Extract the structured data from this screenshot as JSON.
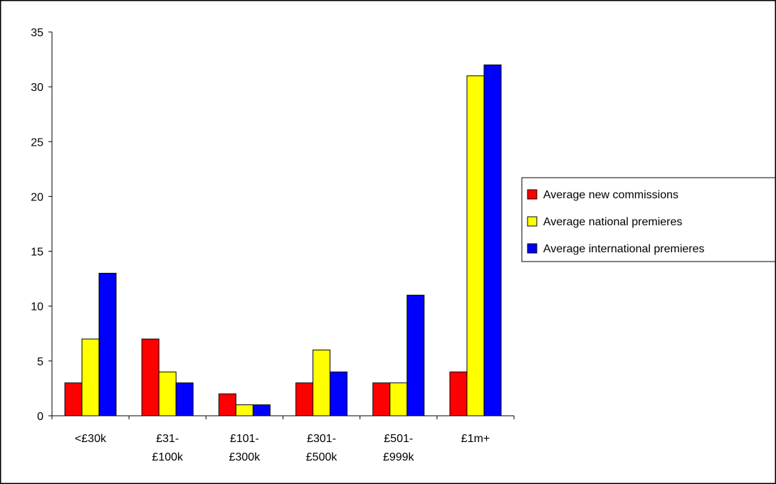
{
  "chart_data": {
    "type": "bar",
    "title": "",
    "xlabel": "",
    "ylabel": "",
    "ylim": [
      0,
      35
    ],
    "yticks": [
      0,
      5,
      10,
      15,
      20,
      25,
      30,
      35
    ],
    "grid": false,
    "legend_position": "right",
    "categories": [
      [
        "<£30k"
      ],
      [
        "£31-",
        "£100k"
      ],
      [
        "£101-",
        "£300k"
      ],
      [
        "£301-",
        "£500k"
      ],
      [
        "£501-",
        "£999k"
      ],
      [
        "£1m+"
      ]
    ],
    "series": [
      {
        "name": "Average new commissions",
        "color": "#ff0000",
        "values": [
          3,
          7,
          2,
          3,
          3,
          4
        ]
      },
      {
        "name": "Average national premieres",
        "color": "#ffff00",
        "values": [
          7,
          4,
          1,
          6,
          3,
          31
        ]
      },
      {
        "name": "Average international premieres",
        "color": "#0000ff",
        "values": [
          13,
          3,
          1,
          4,
          11,
          32
        ]
      }
    ]
  }
}
